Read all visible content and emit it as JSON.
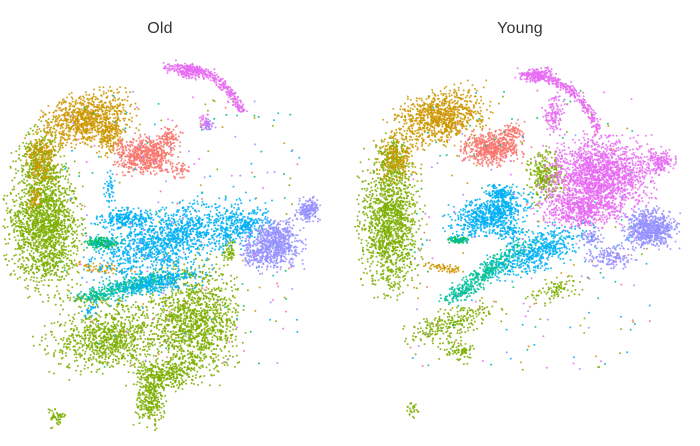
{
  "chart_data": [
    {
      "type": "scatter",
      "title": "Old",
      "xlabel": "",
      "ylabel": "",
      "grid": false,
      "legend": "none",
      "series": [
        {
          "color": "#7CAE00"
        },
        {
          "color": "#CD9600"
        },
        {
          "color": "#F8766D"
        },
        {
          "color": "#E76BF3"
        },
        {
          "color": "#00B0F6"
        },
        {
          "color": "#00C19A"
        },
        {
          "color": "#00BE67"
        },
        {
          "color": "#9590FF"
        }
      ]
    },
    {
      "type": "scatter",
      "title": "Young",
      "xlabel": "",
      "ylabel": "",
      "grid": false,
      "legend": "none",
      "series": [
        {
          "color": "#7CAE00"
        },
        {
          "color": "#CD9600"
        },
        {
          "color": "#F8766D"
        },
        {
          "color": "#E76BF3"
        },
        {
          "color": "#00B0F6"
        },
        {
          "color": "#00C19A"
        },
        {
          "color": "#00BE67"
        },
        {
          "color": "#9590FF"
        }
      ]
    }
  ]
}
